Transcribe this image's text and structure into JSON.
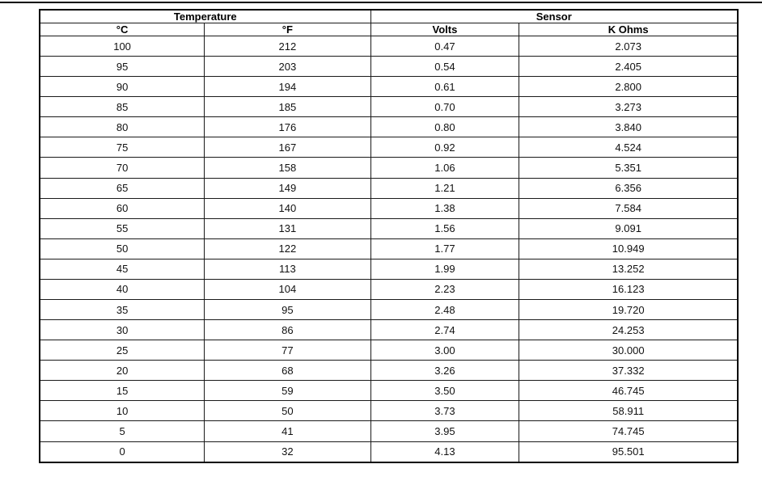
{
  "page": {
    "background_color": "#ffffff",
    "top_rule_color": "#000000",
    "border_color": "#000000"
  },
  "table": {
    "group_headers": [
      {
        "label": "Temperature",
        "span": 2
      },
      {
        "label": "Sensor",
        "span": 2
      }
    ],
    "columns": [
      "°C",
      "°F",
      "Volts",
      "K Ohms"
    ],
    "rows": [
      [
        "100",
        "212",
        "0.47",
        "2.073"
      ],
      [
        "95",
        "203",
        "0.54",
        "2.405"
      ],
      [
        "90",
        "194",
        "0.61",
        "2.800"
      ],
      [
        "85",
        "185",
        "0.70",
        "3.273"
      ],
      [
        "80",
        "176",
        "0.80",
        "3.840"
      ],
      [
        "75",
        "167",
        "0.92",
        "4.524"
      ],
      [
        "70",
        "158",
        "1.06",
        "5.351"
      ],
      [
        "65",
        "149",
        "1.21",
        "6.356"
      ],
      [
        "60",
        "140",
        "1.38",
        "7.584"
      ],
      [
        "55",
        "131",
        "1.56",
        "9.091"
      ],
      [
        "50",
        "122",
        "1.77",
        "10.949"
      ],
      [
        "45",
        "113",
        "1.99",
        "13.252"
      ],
      [
        "40",
        "104",
        "2.23",
        "16.123"
      ],
      [
        "35",
        "95",
        "2.48",
        "19.720"
      ],
      [
        "30",
        "86",
        "2.74",
        "24.253"
      ],
      [
        "25",
        "77",
        "3.00",
        "30.000"
      ],
      [
        "20",
        "68",
        "3.26",
        "37.332"
      ],
      [
        "15",
        "59",
        "3.50",
        "46.745"
      ],
      [
        "10",
        "50",
        "3.73",
        "58.911"
      ],
      [
        "5",
        "41",
        "3.95",
        "74.745"
      ],
      [
        "0",
        "32",
        "4.13",
        "95.501"
      ]
    ]
  }
}
